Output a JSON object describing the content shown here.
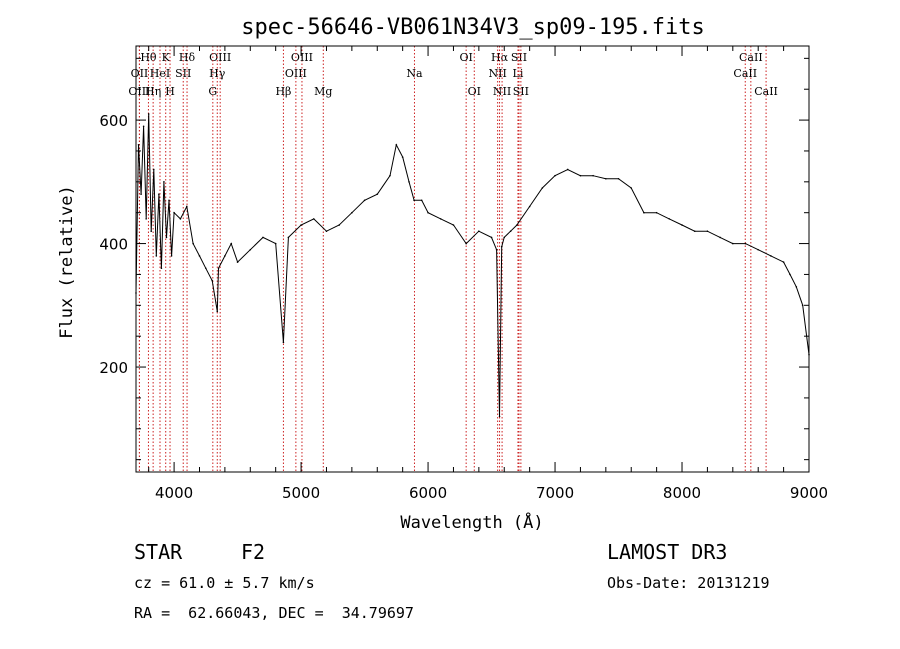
{
  "chart_data": {
    "type": "line",
    "title": "spec-56646-VB061N34V3_sp09-195.fits",
    "xlabel": "Wavelength (Å)",
    "ylabel": "Flux (relative)",
    "xlim": [
      3700,
      9000
    ],
    "ylim": [
      30,
      720
    ],
    "xticks": [
      4000,
      5000,
      6000,
      7000,
      8000,
      9000
    ],
    "yticks": [
      200,
      400,
      600
    ],
    "series": [
      {
        "name": "flux",
        "x": [
          3700,
          3720,
          3740,
          3760,
          3780,
          3800,
          3820,
          3840,
          3860,
          3880,
          3900,
          3920,
          3940,
          3960,
          3980,
          4000,
          4050,
          4100,
          4150,
          4200,
          4250,
          4300,
          4340,
          4350,
          4400,
          4450,
          4500,
          4600,
          4700,
          4800,
          4861,
          4900,
          5000,
          5100,
          5200,
          5300,
          5400,
          5500,
          5600,
          5700,
          5750,
          5800,
          5850,
          5890,
          5950,
          6000,
          6100,
          6200,
          6300,
          6400,
          6500,
          6540,
          6563,
          6580,
          6600,
          6650,
          6700,
          6800,
          6900,
          7000,
          7100,
          7200,
          7300,
          7400,
          7500,
          7600,
          7700,
          7800,
          7900,
          8000,
          8100,
          8200,
          8300,
          8400,
          8500,
          8600,
          8700,
          8800,
          8850,
          8900,
          8950,
          9000
        ],
        "y": [
          320,
          560,
          480,
          590,
          440,
          610,
          420,
          520,
          380,
          480,
          360,
          500,
          410,
          470,
          380,
          450,
          440,
          460,
          400,
          380,
          360,
          340,
          290,
          360,
          380,
          400,
          370,
          390,
          410,
          400,
          240,
          410,
          430,
          440,
          420,
          430,
          450,
          470,
          480,
          510,
          560,
          540,
          500,
          470,
          470,
          450,
          440,
          430,
          400,
          420,
          410,
          390,
          120,
          395,
          410,
          420,
          430,
          460,
          490,
          510,
          520,
          510,
          510,
          505,
          505,
          490,
          450,
          450,
          440,
          430,
          420,
          420,
          410,
          400,
          400,
          390,
          380,
          370,
          350,
          330,
          300,
          220
        ]
      }
    ],
    "spectral_lines": [
      {
        "label": "Hθ",
        "x": 3798,
        "row": 1
      },
      {
        "label": "OII",
        "x": 3727,
        "row": 2
      },
      {
        "label": "OIII",
        "x": 3727,
        "row": 3
      },
      {
        "label": "K",
        "x": 3934,
        "row": 1
      },
      {
        "label": "HeI",
        "x": 3889,
        "row": 2
      },
      {
        "label": "Hη",
        "x": 3835,
        "row": 3
      },
      {
        "label": "Hδ",
        "x": 4102,
        "row": 1
      },
      {
        "label": "SII",
        "x": 4072,
        "row": 2
      },
      {
        "label": "H",
        "x": 3968,
        "row": 3
      },
      {
        "label": "OIII",
        "x": 4363,
        "row": 1
      },
      {
        "label": "Hγ",
        "x": 4340,
        "row": 2
      },
      {
        "label": "G",
        "x": 4305,
        "row": 3
      },
      {
        "label": "Hβ",
        "x": 4861,
        "row": 3
      },
      {
        "label": "OIII",
        "x": 5007,
        "row": 1
      },
      {
        "label": "OIII",
        "x": 4959,
        "row": 2
      },
      {
        "label": "Mg",
        "x": 5175,
        "row": 3
      },
      {
        "label": "Na",
        "x": 5893,
        "row": 2
      },
      {
        "label": "OI",
        "x": 6300,
        "row": 1
      },
      {
        "label": "OI",
        "x": 6364,
        "row": 3
      },
      {
        "label": "Hα",
        "x": 6563,
        "row": 1
      },
      {
        "label": "NII",
        "x": 6548,
        "row": 2
      },
      {
        "label": "NII",
        "x": 6583,
        "row": 3
      },
      {
        "label": "SII",
        "x": 6716,
        "row": 1
      },
      {
        "label": "Li",
        "x": 6708,
        "row": 2
      },
      {
        "label": "SII",
        "x": 6731,
        "row": 3
      },
      {
        "label": "CaII",
        "x": 8542,
        "row": 1
      },
      {
        "label": "CaII",
        "x": 8498,
        "row": 2
      },
      {
        "label": "CaII",
        "x": 8662,
        "row": 3
      }
    ]
  },
  "info": {
    "object_class": "STAR",
    "subclass": "F2",
    "cz": "cz = 61.0 ± 5.7 km/s",
    "radec": "RA =  62.66043, DEC =  34.79697",
    "survey": "LAMOST DR3",
    "obs_date": "Obs-Date: 20131219"
  }
}
